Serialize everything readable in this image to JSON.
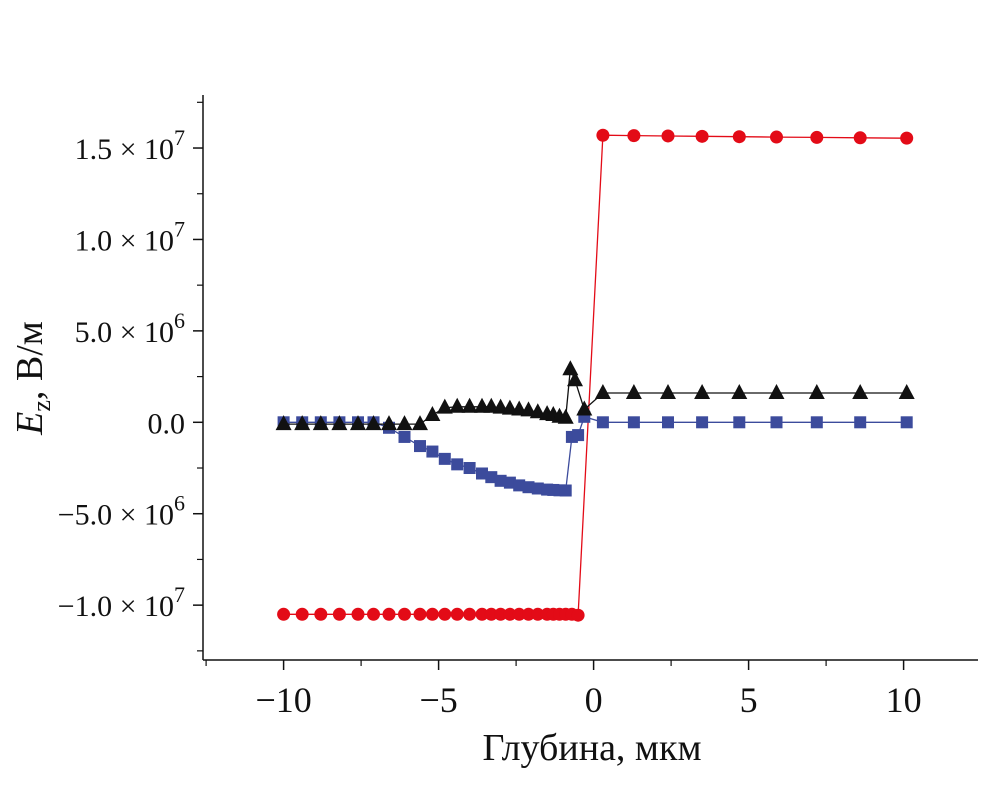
{
  "chart_data": {
    "type": "line",
    "title": "",
    "xlabel": "Глубина, мкм",
    "ylabel": {
      "symbol": "E",
      "subscript": "z",
      "rest": ", В/м"
    },
    "xlim": [
      -12.6,
      12.4
    ],
    "ylim": [
      -13000000,
      17900000
    ],
    "grid": false,
    "legend": "none",
    "x_ticks": [
      -10,
      -5,
      0,
      5,
      10
    ],
    "x_tick_labels": [
      "−10",
      "−5",
      "0",
      "5",
      "10"
    ],
    "y_ticks": [
      -10000000,
      -5000000,
      0,
      5000000,
      10000000,
      15000000
    ],
    "y_tick_labels": [
      {
        "mantissa": "−1.0 × 10",
        "exp": "7"
      },
      {
        "mantissa": "−5.0 × 10",
        "exp": "6"
      },
      {
        "mantissa": "0.0",
        "exp": ""
      },
      {
        "mantissa": "5.0 × 10",
        "exp": "6"
      },
      {
        "mantissa": "1.0 × 10",
        "exp": "7"
      },
      {
        "mantissa": "1.5 × 10",
        "exp": "7"
      }
    ],
    "series": [
      {
        "marker": "circle",
        "color": "#e30b17",
        "x": [
          -10,
          -9.4,
          -8.8,
          -8.2,
          -7.6,
          -7.1,
          -6.6,
          -6.1,
          -5.6,
          -5.2,
          -4.8,
          -4.4,
          -4.0,
          -3.6,
          -3.3,
          -3.0,
          -2.7,
          -2.4,
          -2.1,
          -1.8,
          -1.5,
          -1.3,
          -1.1,
          -0.9,
          -0.7,
          -0.5,
          0.3,
          1.3,
          2.4,
          3.5,
          4.7,
          5.9,
          7.2,
          8.6,
          10.1
        ],
        "y": [
          -10500000,
          -10500000,
          -10500000,
          -10500000,
          -10500000,
          -10500000,
          -10500000,
          -10500000,
          -10500000,
          -10500000,
          -10500000,
          -10500000,
          -10500000,
          -10500000,
          -10500000,
          -10500000,
          -10500000,
          -10500000,
          -10500000,
          -10500000,
          -10500000,
          -10500000,
          -10500000,
          -10500000,
          -10500000,
          -10550000,
          15700000,
          15680000,
          15660000,
          15640000,
          15620000,
          15600000,
          15580000,
          15560000,
          15540000
        ]
      },
      {
        "marker": "square",
        "color": "#3c4b9c",
        "x": [
          -10,
          -9.4,
          -8.8,
          -8.2,
          -7.6,
          -7.1,
          -6.6,
          -6.1,
          -5.6,
          -5.2,
          -4.8,
          -4.4,
          -4.0,
          -3.6,
          -3.3,
          -3.0,
          -2.7,
          -2.4,
          -2.1,
          -1.8,
          -1.5,
          -1.3,
          -1.1,
          -0.9,
          -0.7,
          -0.5,
          -0.3,
          0.3,
          1.3,
          2.4,
          3.5,
          4.7,
          5.9,
          7.2,
          8.6,
          10.1
        ],
        "y": [
          0,
          0,
          0,
          0,
          0,
          0,
          -300000,
          -800000,
          -1300000,
          -1600000,
          -2000000,
          -2300000,
          -2500000,
          -2800000,
          -3000000,
          -3200000,
          -3300000,
          -3450000,
          -3550000,
          -3620000,
          -3680000,
          -3700000,
          -3720000,
          -3730000,
          -800000,
          -700000,
          300000,
          0,
          0,
          0,
          0,
          0,
          0,
          0,
          0,
          0
        ]
      },
      {
        "marker": "triangle",
        "color": "#111111",
        "x": [
          -10,
          -9.4,
          -8.8,
          -8.2,
          -7.6,
          -7.1,
          -6.6,
          -6.1,
          -5.6,
          -5.2,
          -4.8,
          -4.4,
          -4.0,
          -3.6,
          -3.3,
          -3.0,
          -2.7,
          -2.4,
          -2.1,
          -1.8,
          -1.5,
          -1.3,
          -1.1,
          -0.9,
          -0.75,
          -0.6,
          -0.3,
          0.3,
          1.3,
          2.4,
          3.5,
          4.7,
          5.9,
          7.2,
          8.6,
          10.1
        ],
        "y": [
          -100000,
          -100000,
          -100000,
          -100000,
          -100000,
          -100000,
          -100000,
          -100000,
          -100000,
          400000,
          800000,
          850000,
          850000,
          850000,
          850000,
          800000,
          750000,
          700000,
          650000,
          550000,
          450000,
          400000,
          300000,
          250000,
          2900000,
          2300000,
          700000,
          1600000,
          1600000,
          1600000,
          1600000,
          1600000,
          1600000,
          1600000,
          1600000,
          1600000
        ]
      }
    ]
  }
}
